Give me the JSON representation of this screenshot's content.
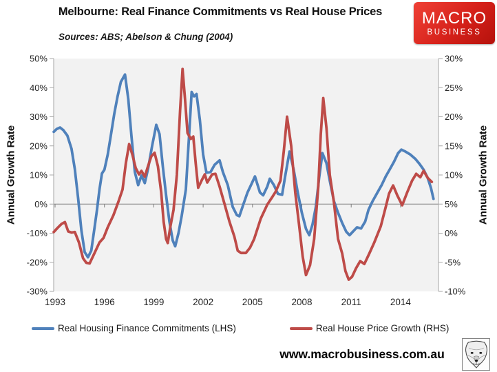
{
  "header": {
    "title": "Melbourne: Real Finance Commitments vs Real House Prices",
    "source_note": "Sources: ABS; Abelson & Chung (2004)",
    "logo": {
      "line1": "MACRO",
      "line2": "BUSINESS",
      "bg_color": "#d6211a"
    }
  },
  "footer": {
    "website": "www.macrobusiness.com.au"
  },
  "chart_data": {
    "type": "line",
    "title": "Melbourne: Real Finance Commitments vs Real House Prices",
    "plot_background": "#f2f2f2",
    "grid": "off",
    "legend_position": "bottom",
    "left_axis": {
      "label": "Annual Growth Rate",
      "min": -30,
      "max": 50,
      "ticks": [
        "50%",
        "40%",
        "30%",
        "20%",
        "10%",
        "0%",
        "-10%",
        "-20%",
        "-30%"
      ]
    },
    "right_axis": {
      "label": "Annual Growth Rate",
      "min": -10,
      "max": 30,
      "ticks": [
        "30%",
        "25%",
        "20%",
        "15%",
        "10%",
        "5%",
        "0%",
        "-5%",
        "-10%"
      ]
    },
    "x_axis": {
      "start": 1992.9,
      "end": 2016.2,
      "tick_labels": [
        "1993",
        "1996",
        "1999",
        "2002",
        "2005",
        "2008",
        "2011",
        "2014"
      ]
    },
    "series": [
      {
        "name": "Real Housing Finance Commitments (LHS)",
        "axis": "left",
        "color": "#4f81bb",
        "points": [
          [
            1992.92,
            24.8
          ],
          [
            1993.1,
            25.8
          ],
          [
            1993.3,
            26.3
          ],
          [
            1993.5,
            25.4
          ],
          [
            1993.75,
            23.5
          ],
          [
            1994.0,
            19
          ],
          [
            1994.2,
            12
          ],
          [
            1994.4,
            2
          ],
          [
            1994.6,
            -9
          ],
          [
            1994.8,
            -16.5
          ],
          [
            1995.0,
            -18.3
          ],
          [
            1995.2,
            -16
          ],
          [
            1995.4,
            -8
          ],
          [
            1995.55,
            -2
          ],
          [
            1995.7,
            5
          ],
          [
            1995.85,
            10.5
          ],
          [
            1996.0,
            11.8
          ],
          [
            1996.2,
            17
          ],
          [
            1996.4,
            24
          ],
          [
            1996.6,
            31
          ],
          [
            1996.8,
            37
          ],
          [
            1997.0,
            42
          ],
          [
            1997.25,
            44.5
          ],
          [
            1997.45,
            36
          ],
          [
            1997.65,
            23
          ],
          [
            1997.85,
            11
          ],
          [
            1998.05,
            6.5
          ],
          [
            1998.25,
            9.8
          ],
          [
            1998.45,
            7.2
          ],
          [
            1998.65,
            12
          ],
          [
            1998.9,
            20
          ],
          [
            1999.15,
            27.2
          ],
          [
            1999.35,
            24
          ],
          [
            1999.55,
            13
          ],
          [
            1999.75,
            3
          ],
          [
            1999.95,
            -6
          ],
          [
            2000.15,
            -12.5
          ],
          [
            2000.3,
            -14.5
          ],
          [
            2000.5,
            -10
          ],
          [
            2000.7,
            -4
          ],
          [
            2000.95,
            5
          ],
          [
            2001.15,
            24
          ],
          [
            2001.3,
            38.5
          ],
          [
            2001.45,
            37
          ],
          [
            2001.6,
            37.8
          ],
          [
            2001.8,
            29
          ],
          [
            2002.0,
            17
          ],
          [
            2002.2,
            10.8
          ],
          [
            2002.45,
            11
          ],
          [
            2002.7,
            13.5
          ],
          [
            2003.0,
            15
          ],
          [
            2003.2,
            11
          ],
          [
            2003.5,
            6.5
          ],
          [
            2003.8,
            -1
          ],
          [
            2004.05,
            -3.8
          ],
          [
            2004.2,
            -4.2
          ],
          [
            2004.45,
            0
          ],
          [
            2004.7,
            4
          ],
          [
            2004.95,
            7
          ],
          [
            2005.15,
            9.5
          ],
          [
            2005.45,
            4
          ],
          [
            2005.65,
            3
          ],
          [
            2005.9,
            6
          ],
          [
            2006.05,
            8.7
          ],
          [
            2006.3,
            6.5
          ],
          [
            2006.55,
            3.5
          ],
          [
            2006.8,
            3.2
          ],
          [
            2007.0,
            10
          ],
          [
            2007.25,
            18
          ],
          [
            2007.5,
            12
          ],
          [
            2007.75,
            4
          ],
          [
            2008.0,
            -3
          ],
          [
            2008.25,
            -8.5
          ],
          [
            2008.45,
            -10.7
          ],
          [
            2008.65,
            -7
          ],
          [
            2008.85,
            -1
          ],
          [
            2009.05,
            9
          ],
          [
            2009.25,
            17.5
          ],
          [
            2009.5,
            14
          ],
          [
            2009.7,
            8
          ],
          [
            2009.95,
            1
          ],
          [
            2010.2,
            -3
          ],
          [
            2010.45,
            -6.5
          ],
          [
            2010.7,
            -9.5
          ],
          [
            2010.9,
            -10.7
          ],
          [
            2011.1,
            -9.5
          ],
          [
            2011.35,
            -8
          ],
          [
            2011.6,
            -8.4
          ],
          [
            2011.85,
            -6
          ],
          [
            2012.05,
            -2
          ],
          [
            2012.3,
            1
          ],
          [
            2012.6,
            4
          ],
          [
            2012.85,
            6.5
          ],
          [
            2013.1,
            9.5
          ],
          [
            2013.35,
            12
          ],
          [
            2013.6,
            14.5
          ],
          [
            2013.85,
            17.5
          ],
          [
            2014.05,
            18.7
          ],
          [
            2014.3,
            18
          ],
          [
            2014.6,
            17
          ],
          [
            2014.9,
            15.5
          ],
          [
            2015.15,
            13.8
          ],
          [
            2015.4,
            11.8
          ],
          [
            2015.65,
            9
          ],
          [
            2015.85,
            5.5
          ],
          [
            2016.0,
            1.8
          ]
        ]
      },
      {
        "name": "Real House Price Growth (RHS)",
        "axis": "right",
        "color": "#be4b48",
        "points": [
          [
            1992.92,
            0.2
          ],
          [
            1993.15,
            0.9
          ],
          [
            1993.4,
            1.6
          ],
          [
            1993.6,
            1.9
          ],
          [
            1993.8,
            0.3
          ],
          [
            1994.0,
            0.1
          ],
          [
            1994.2,
            0.2
          ],
          [
            1994.45,
            -1.6
          ],
          [
            1994.7,
            -4.3
          ],
          [
            1994.9,
            -5.1
          ],
          [
            1995.1,
            -5.2
          ],
          [
            1995.4,
            -3.4
          ],
          [
            1995.7,
            -1.6
          ],
          [
            1995.95,
            -0.8
          ],
          [
            1996.2,
            1.0
          ],
          [
            1996.55,
            3.1
          ],
          [
            1996.85,
            5.4
          ],
          [
            1997.1,
            7.5
          ],
          [
            1997.3,
            12
          ],
          [
            1997.5,
            15.3
          ],
          [
            1997.7,
            13.5
          ],
          [
            1997.9,
            11.2
          ],
          [
            1998.1,
            10.1
          ],
          [
            1998.25,
            10.7
          ],
          [
            1998.45,
            9.7
          ],
          [
            1998.65,
            11.5
          ],
          [
            1998.85,
            13.2
          ],
          [
            1999.05,
            13.8
          ],
          [
            1999.25,
            11.5
          ],
          [
            1999.45,
            7
          ],
          [
            1999.6,
            2
          ],
          [
            1999.75,
            -1.0
          ],
          [
            1999.85,
            -1.7
          ],
          [
            2000.0,
            1
          ],
          [
            2000.2,
            4
          ],
          [
            2000.4,
            10
          ],
          [
            2000.6,
            21
          ],
          [
            2000.75,
            28.2
          ],
          [
            2000.9,
            23
          ],
          [
            2001.05,
            17.2
          ],
          [
            2001.25,
            16.2
          ],
          [
            2001.4,
            16.6
          ],
          [
            2001.55,
            12
          ],
          [
            2001.7,
            7.8
          ],
          [
            2001.9,
            9
          ],
          [
            2002.1,
            10.1
          ],
          [
            2002.25,
            8.7
          ],
          [
            2002.55,
            10.1
          ],
          [
            2002.75,
            10.2
          ],
          [
            2003.0,
            8
          ],
          [
            2003.3,
            5
          ],
          [
            2003.6,
            2
          ],
          [
            2003.9,
            -0.6
          ],
          [
            2004.1,
            -3.0
          ],
          [
            2004.3,
            -3.4
          ],
          [
            2004.6,
            -3.4
          ],
          [
            2004.85,
            -2.5
          ],
          [
            2005.1,
            -1.0
          ],
          [
            2005.5,
            2.5
          ],
          [
            2005.9,
            4.9
          ],
          [
            2006.2,
            6.2
          ],
          [
            2006.4,
            7.1
          ],
          [
            2006.7,
            9.0
          ],
          [
            2006.9,
            14
          ],
          [
            2007.1,
            20
          ],
          [
            2007.35,
            15
          ],
          [
            2007.6,
            7
          ],
          [
            2007.85,
            1
          ],
          [
            2008.05,
            -4
          ],
          [
            2008.25,
            -7.2
          ],
          [
            2008.5,
            -5.5
          ],
          [
            2008.75,
            -1
          ],
          [
            2009.0,
            8
          ],
          [
            2009.15,
            17
          ],
          [
            2009.3,
            23.2
          ],
          [
            2009.5,
            18
          ],
          [
            2009.7,
            10
          ],
          [
            2009.95,
            5.3
          ],
          [
            2010.2,
            -1
          ],
          [
            2010.45,
            -3.5
          ],
          [
            2010.65,
            -6.5
          ],
          [
            2010.85,
            -8.0
          ],
          [
            2011.05,
            -7.5
          ],
          [
            2011.3,
            -6
          ],
          [
            2011.55,
            -4.8
          ],
          [
            2011.8,
            -5.3
          ],
          [
            2012.1,
            -3.5
          ],
          [
            2012.4,
            -1.6
          ],
          [
            2012.8,
            1.2
          ],
          [
            2013.1,
            4.5
          ],
          [
            2013.3,
            6.8
          ],
          [
            2013.55,
            8.2
          ],
          [
            2013.8,
            6.5
          ],
          [
            2014.1,
            4.8
          ],
          [
            2014.4,
            7
          ],
          [
            2014.7,
            9
          ],
          [
            2014.95,
            10.2
          ],
          [
            2015.2,
            9.6
          ],
          [
            2015.4,
            10.7
          ],
          [
            2015.65,
            9.5
          ],
          [
            2015.9,
            8.8
          ]
        ]
      }
    ]
  }
}
